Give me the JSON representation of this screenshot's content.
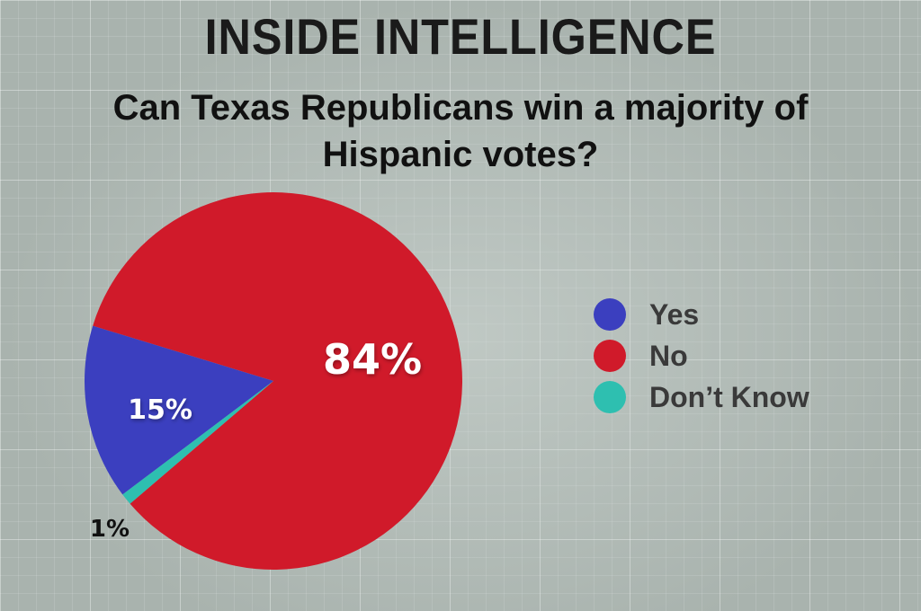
{
  "header": {
    "title": "INSIDE INTELLIGENCE",
    "subtitle": "Can Texas Republicans win a majority of Hispanic votes?"
  },
  "chart_data": {
    "type": "pie",
    "title": "Can Texas Republicans win a majority of Hispanic votes?",
    "slices": [
      {
        "label": "Yes",
        "value": 15,
        "display": "15%",
        "color": "#3b3fbf"
      },
      {
        "label": "No",
        "value": 84,
        "display": "84%",
        "color": "#d01a2a"
      },
      {
        "label": "Don’t Know",
        "value": 1,
        "display": "1%",
        "color": "#2ebfb0"
      }
    ],
    "legend_position": "right"
  }
}
